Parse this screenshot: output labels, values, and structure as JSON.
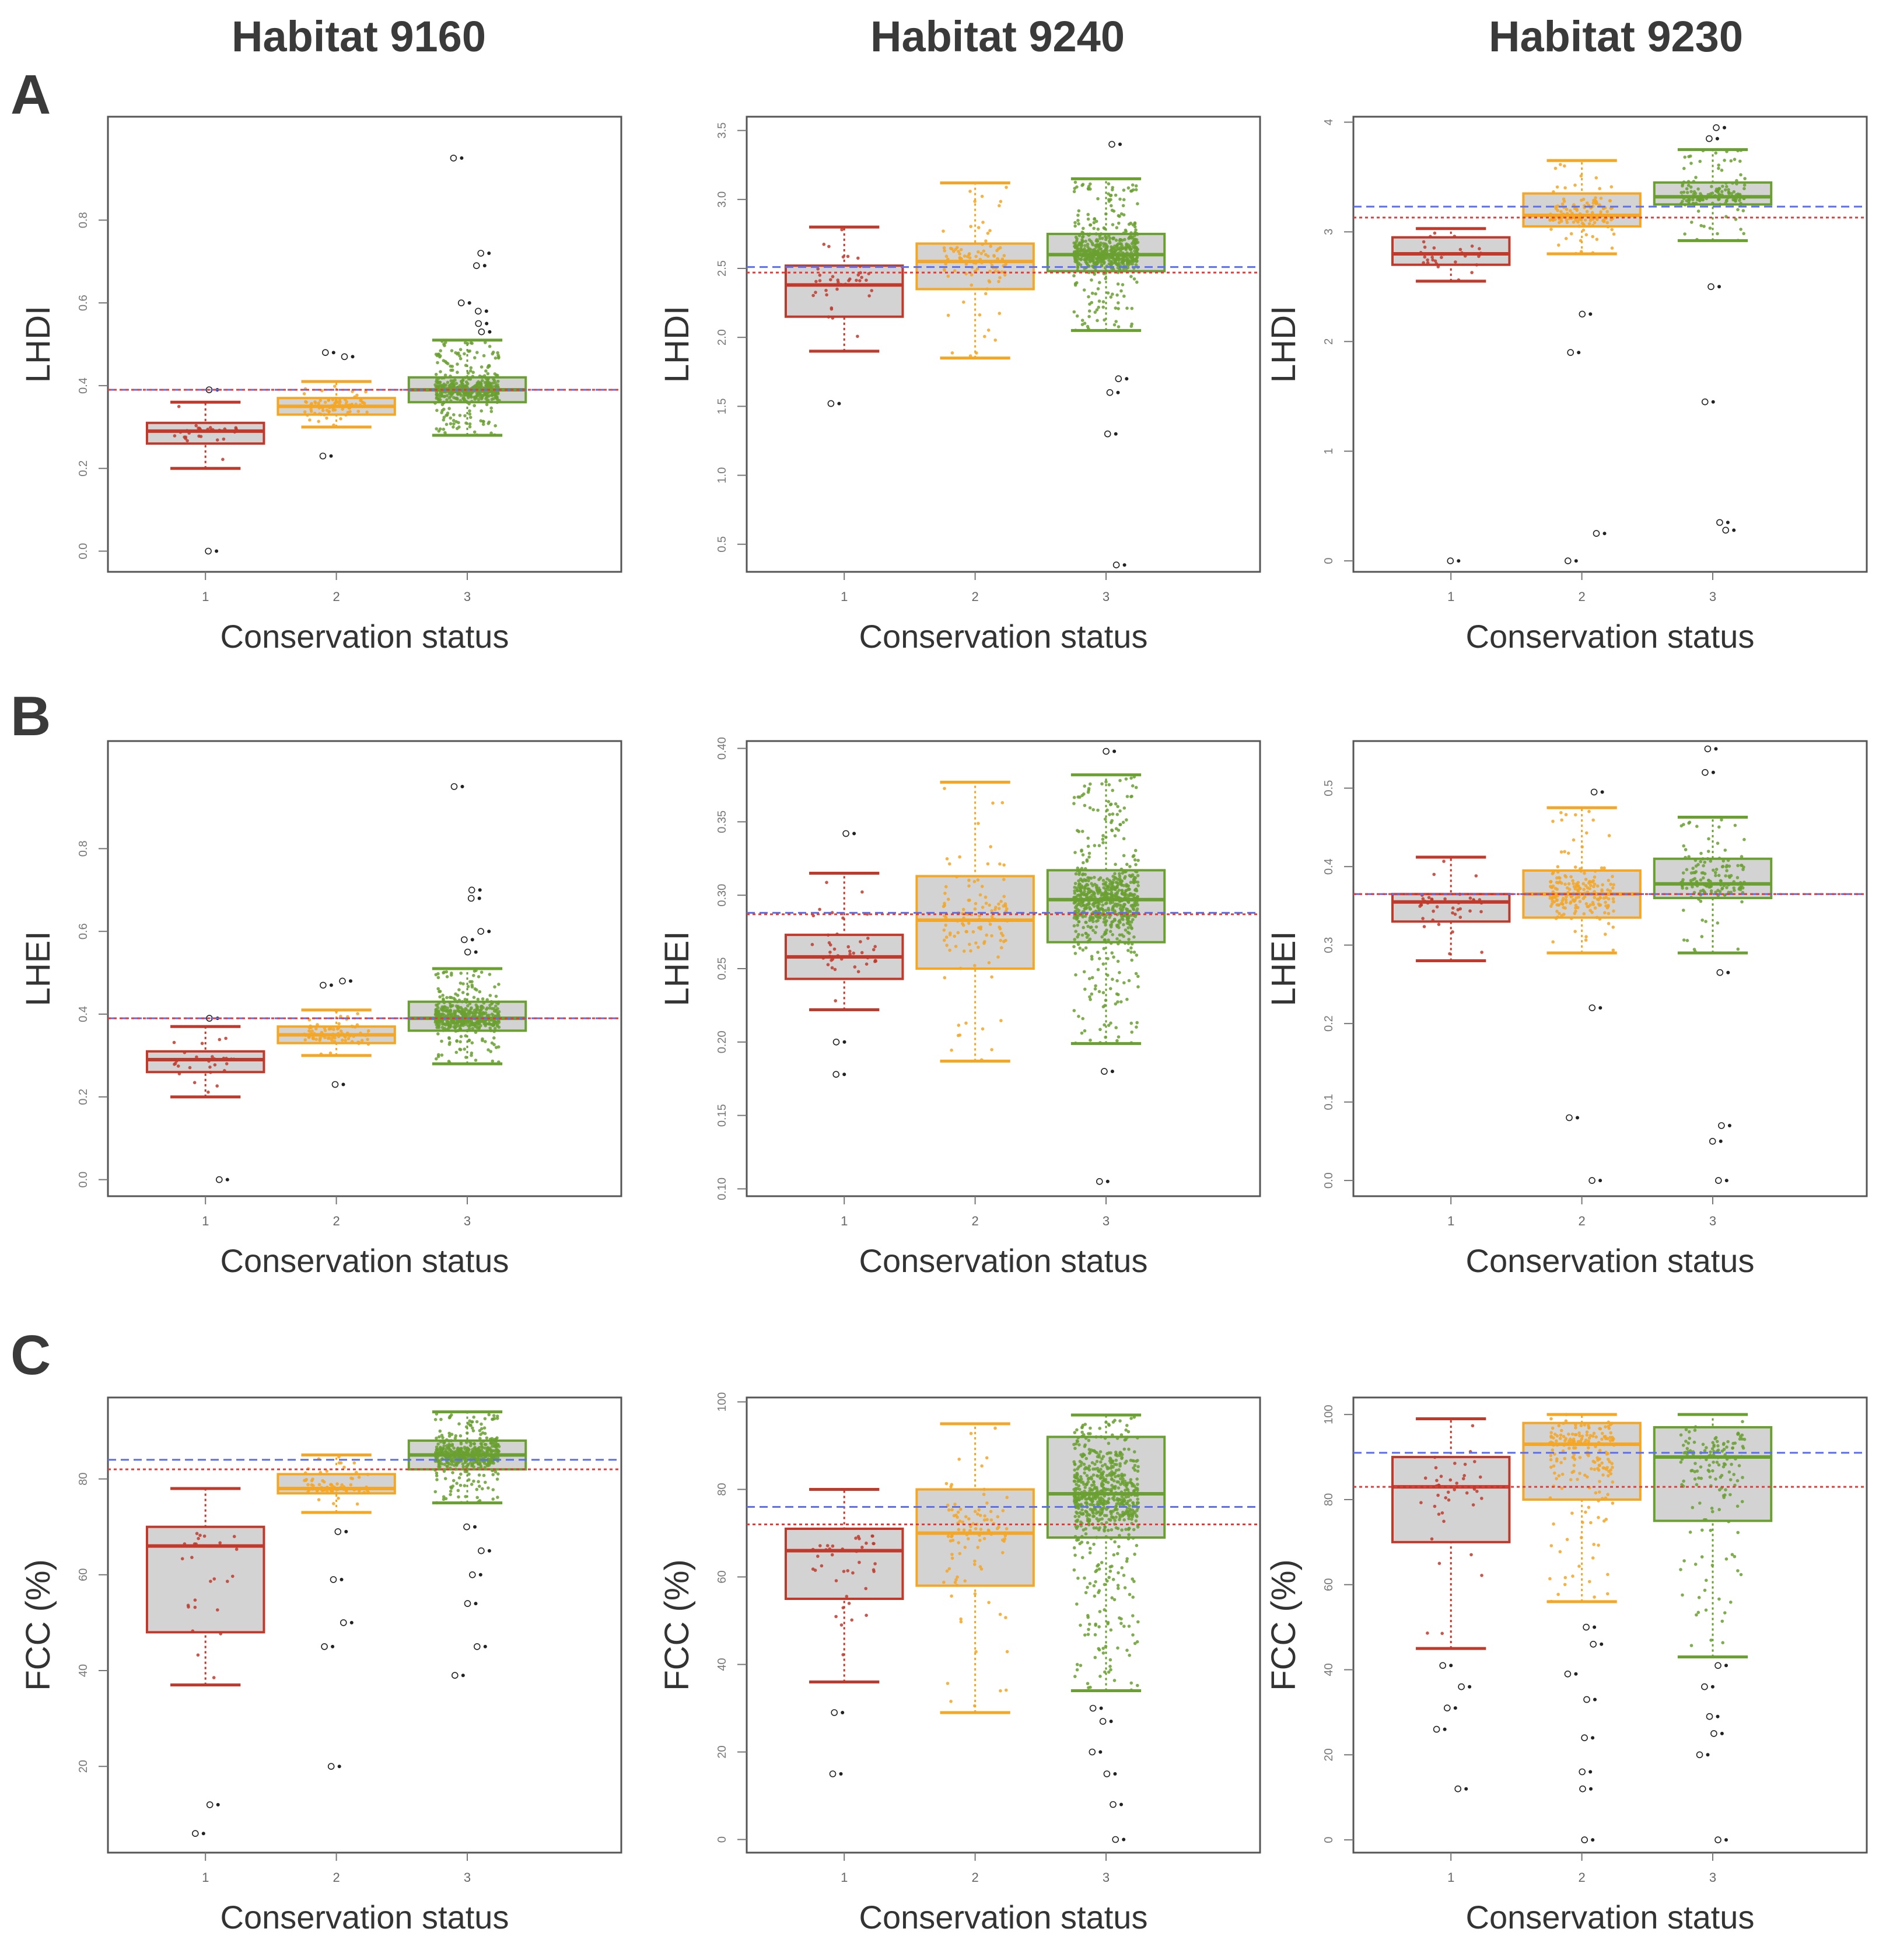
{
  "figure": {
    "habitat_titles": [
      "Habitat 9160",
      "Habitat 9240",
      "Habitat 9230"
    ],
    "row_labels": [
      "A",
      "B",
      "C"
    ],
    "xlabel": "Conservation status",
    "categories": [
      "1",
      "2",
      "3"
    ],
    "colors": {
      "status1": "#c0392b",
      "status2": "#f5a623",
      "status3": "#6aa030",
      "box_fill": "#d3d3d3",
      "ref_blue": "#5b6ff0",
      "ref_red": "#e23b3b",
      "outlier": "#222222"
    }
  },
  "chart_data": [
    {
      "type": "box",
      "row": "A",
      "habitat": "Habitat 9160",
      "ylabel": "LHDI",
      "xlabel": "Conservation status",
      "categories": [
        "1",
        "2",
        "3"
      ],
      "ylim": [
        -0.05,
        1.05
      ],
      "yticks": [
        0.0,
        0.2,
        0.4,
        0.6,
        0.8
      ],
      "ytick_labels": [
        "0.0",
        "0.2",
        "0.4",
        "0.6",
        "0.8"
      ],
      "boxes": [
        {
          "q1": 0.26,
          "median": 0.29,
          "q3": 0.31,
          "whisker_low": 0.2,
          "whisker_high": 0.36,
          "outliers": [
            0.0,
            0.39
          ]
        },
        {
          "q1": 0.33,
          "median": 0.35,
          "q3": 0.37,
          "whisker_low": 0.3,
          "whisker_high": 0.41,
          "outliers": [
            0.23,
            0.47,
            0.48
          ]
        },
        {
          "q1": 0.36,
          "median": 0.39,
          "q3": 0.42,
          "whisker_low": 0.28,
          "whisker_high": 0.51,
          "outliers": [
            0.53,
            0.55,
            0.58,
            0.6,
            0.69,
            0.72,
            0.95
          ]
        }
      ],
      "point_counts": [
        30,
        80,
        500
      ],
      "ref_blue": 0.39,
      "ref_red": 0.39
    },
    {
      "type": "box",
      "row": "A",
      "habitat": "Habitat 9240",
      "ylabel": "LHDI",
      "xlabel": "Conservation status",
      "categories": [
        "1",
        "2",
        "3"
      ],
      "ylim": [
        0.3,
        3.6
      ],
      "yticks": [
        0.5,
        1.0,
        1.5,
        2.0,
        2.5,
        3.0,
        3.5
      ],
      "ytick_labels": [
        "0.5",
        "1.0",
        "1.5",
        "2.0",
        "2.5",
        "3.0",
        "3.5"
      ],
      "boxes": [
        {
          "q1": 2.15,
          "median": 2.38,
          "q3": 2.52,
          "whisker_low": 1.9,
          "whisker_high": 2.8,
          "outliers": [
            1.52
          ]
        },
        {
          "q1": 2.35,
          "median": 2.55,
          "q3": 2.68,
          "whisker_low": 1.85,
          "whisker_high": 3.12,
          "outliers": []
        },
        {
          "q1": 2.48,
          "median": 2.6,
          "q3": 2.75,
          "whisker_low": 2.05,
          "whisker_high": 3.15,
          "outliers": [
            0.35,
            1.3,
            1.6,
            1.7,
            3.4
          ]
        }
      ],
      "point_counts": [
        40,
        100,
        600
      ],
      "ref_blue": 2.51,
      "ref_red": 2.47
    },
    {
      "type": "box",
      "row": "A",
      "habitat": "Habitat 9230",
      "ylabel": "LHDI",
      "xlabel": "Conservation status",
      "categories": [
        "1",
        "2",
        "3"
      ],
      "ylim": [
        -0.1,
        4.05
      ],
      "yticks": [
        0,
        1,
        2,
        3,
        4
      ],
      "ytick_labels": [
        "0",
        "1",
        "2",
        "3",
        "4"
      ],
      "boxes": [
        {
          "q1": 2.7,
          "median": 2.8,
          "q3": 2.95,
          "whisker_low": 2.55,
          "whisker_high": 3.03,
          "outliers": [
            0.0
          ]
        },
        {
          "q1": 3.05,
          "median": 3.15,
          "q3": 3.35,
          "whisker_low": 2.8,
          "whisker_high": 3.65,
          "outliers": [
            0.0,
            0.25,
            1.9,
            2.25
          ]
        },
        {
          "q1": 3.25,
          "median": 3.32,
          "q3": 3.45,
          "whisker_low": 2.92,
          "whisker_high": 3.75,
          "outliers": [
            0.28,
            0.35,
            1.45,
            2.5,
            3.85,
            3.95
          ]
        }
      ],
      "point_counts": [
        30,
        150,
        150
      ],
      "ref_blue": 3.23,
      "ref_red": 3.13
    },
    {
      "type": "box",
      "row": "B",
      "habitat": "Habitat 9160",
      "ylabel": "LHEI",
      "xlabel": "Conservation status",
      "categories": [
        "1",
        "2",
        "3"
      ],
      "ylim": [
        -0.04,
        1.06
      ],
      "yticks": [
        0.0,
        0.2,
        0.4,
        0.6,
        0.8
      ],
      "ytick_labels": [
        "0.0",
        "0.2",
        "0.4",
        "0.6",
        "0.8"
      ],
      "boxes": [
        {
          "q1": 0.26,
          "median": 0.29,
          "q3": 0.31,
          "whisker_low": 0.2,
          "whisker_high": 0.37,
          "outliers": [
            0.0,
            0.39
          ]
        },
        {
          "q1": 0.33,
          "median": 0.35,
          "q3": 0.37,
          "whisker_low": 0.3,
          "whisker_high": 0.41,
          "outliers": [
            0.23,
            0.47,
            0.48
          ]
        },
        {
          "q1": 0.36,
          "median": 0.39,
          "q3": 0.43,
          "whisker_low": 0.28,
          "whisker_high": 0.51,
          "outliers": [
            0.55,
            0.58,
            0.6,
            0.68,
            0.7,
            0.95
          ]
        }
      ],
      "point_counts": [
        30,
        80,
        500
      ],
      "ref_blue": 0.39,
      "ref_red": 0.39
    },
    {
      "type": "box",
      "row": "B",
      "habitat": "Habitat 9240",
      "ylabel": "LHEI",
      "xlabel": "Conservation status",
      "categories": [
        "1",
        "2",
        "3"
      ],
      "ylim": [
        0.095,
        0.405
      ],
      "yticks": [
        0.1,
        0.15,
        0.2,
        0.25,
        0.3,
        0.35,
        0.4
      ],
      "ytick_labels": [
        "0.10",
        "0.15",
        "0.20",
        "0.25",
        "0.30",
        "0.35",
        "0.40"
      ],
      "boxes": [
        {
          "q1": 0.243,
          "median": 0.258,
          "q3": 0.273,
          "whisker_low": 0.222,
          "whisker_high": 0.315,
          "outliers": [
            0.178,
            0.2,
            0.342
          ]
        },
        {
          "q1": 0.25,
          "median": 0.283,
          "q3": 0.313,
          "whisker_low": 0.187,
          "whisker_high": 0.377,
          "outliers": []
        },
        {
          "q1": 0.268,
          "median": 0.297,
          "q3": 0.317,
          "whisker_low": 0.199,
          "whisker_high": 0.382,
          "outliers": [
            0.105,
            0.18,
            0.398
          ]
        }
      ],
      "point_counts": [
        40,
        120,
        700
      ],
      "ref_blue": 0.288,
      "ref_red": 0.287
    },
    {
      "type": "box",
      "row": "B",
      "habitat": "Habitat 9230",
      "ylabel": "LHEI",
      "xlabel": "Conservation status",
      "categories": [
        "1",
        "2",
        "3"
      ],
      "ylim": [
        -0.02,
        0.56
      ],
      "yticks": [
        0.0,
        0.1,
        0.2,
        0.3,
        0.4,
        0.5
      ],
      "ytick_labels": [
        "0.0",
        "0.1",
        "0.2",
        "0.3",
        "0.4",
        "0.5"
      ],
      "boxes": [
        {
          "q1": 0.33,
          "median": 0.355,
          "q3": 0.365,
          "whisker_low": 0.28,
          "whisker_high": 0.412,
          "outliers": []
        },
        {
          "q1": 0.335,
          "median": 0.365,
          "q3": 0.395,
          "whisker_low": 0.29,
          "whisker_high": 0.475,
          "outliers": [
            0.0,
            0.08,
            0.22,
            0.495
          ]
        },
        {
          "q1": 0.36,
          "median": 0.378,
          "q3": 0.41,
          "whisker_low": 0.29,
          "whisker_high": 0.463,
          "outliers": [
            0.0,
            0.05,
            0.07,
            0.265,
            0.52,
            0.55
          ]
        }
      ],
      "point_counts": [
        40,
        200,
        150
      ],
      "ref_blue": 0.365,
      "ref_red": 0.365
    },
    {
      "type": "box",
      "row": "C",
      "habitat": "Habitat 9160",
      "ylabel": "FCC (%)",
      "xlabel": "Conservation status",
      "categories": [
        "1",
        "2",
        "3"
      ],
      "ylim": [
        2,
        97
      ],
      "yticks": [
        20,
        40,
        60,
        80
      ],
      "ytick_labels": [
        "20",
        "40",
        "60",
        "80"
      ],
      "boxes": [
        {
          "q1": 48,
          "median": 66,
          "q3": 70,
          "whisker_low": 37,
          "whisker_high": 78,
          "outliers": [
            6,
            12
          ]
        },
        {
          "q1": 77,
          "median": 78,
          "q3": 81,
          "whisker_low": 73,
          "whisker_high": 85,
          "outliers": [
            20,
            45,
            50,
            59,
            69
          ]
        },
        {
          "q1": 82,
          "median": 85,
          "q3": 88,
          "whisker_low": 75,
          "whisker_high": 94,
          "outliers": [
            39,
            45,
            54,
            60,
            65,
            70
          ]
        }
      ],
      "point_counts": [
        25,
        80,
        500
      ],
      "ref_blue": 84,
      "ref_red": 82
    },
    {
      "type": "box",
      "row": "C",
      "habitat": "Habitat 9240",
      "ylabel": "FCC (%)",
      "xlabel": "Conservation status",
      "categories": [
        "1",
        "2",
        "3"
      ],
      "ylim": [
        -3,
        101
      ],
      "yticks": [
        0,
        20,
        40,
        60,
        80,
        100
      ],
      "ytick_labels": [
        "0",
        "20",
        "40",
        "60",
        "80",
        "100"
      ],
      "boxes": [
        {
          "q1": 55,
          "median": 66,
          "q3": 71,
          "whisker_low": 36,
          "whisker_high": 80,
          "outliers": [
            15,
            29
          ]
        },
        {
          "q1": 58,
          "median": 70,
          "q3": 80,
          "whisker_low": 29,
          "whisker_high": 95,
          "outliers": []
        },
        {
          "q1": 69,
          "median": 79,
          "q3": 92,
          "whisker_low": 34,
          "whisker_high": 97,
          "outliers": [
            0,
            8,
            15,
            20,
            27,
            30
          ]
        }
      ],
      "point_counts": [
        40,
        100,
        700
      ],
      "ref_blue": 76,
      "ref_red": 72
    },
    {
      "type": "box",
      "row": "C",
      "habitat": "Habitat 9230",
      "ylabel": "FCC (%)",
      "xlabel": "Conservation status",
      "categories": [
        "1",
        "2",
        "3"
      ],
      "ylim": [
        -3,
        104
      ],
      "yticks": [
        0,
        20,
        40,
        60,
        80,
        100
      ],
      "ytick_labels": [
        "0",
        "20",
        "40",
        "60",
        "80",
        "100"
      ],
      "boxes": [
        {
          "q1": 70,
          "median": 83,
          "q3": 90,
          "whisker_low": 45,
          "whisker_high": 99,
          "outliers": [
            12,
            26,
            31,
            36,
            41
          ]
        },
        {
          "q1": 80,
          "median": 93,
          "q3": 98,
          "whisker_low": 56,
          "whisker_high": 100,
          "outliers": [
            0,
            12,
            16,
            24,
            33,
            39,
            46,
            50
          ]
        },
        {
          "q1": 75,
          "median": 90,
          "q3": 97,
          "whisker_low": 43,
          "whisker_high": 100,
          "outliers": [
            0,
            20,
            25,
            29,
            36,
            41
          ]
        }
      ],
      "point_counts": [
        40,
        200,
        150
      ],
      "ref_blue": 91,
      "ref_red": 83
    }
  ]
}
